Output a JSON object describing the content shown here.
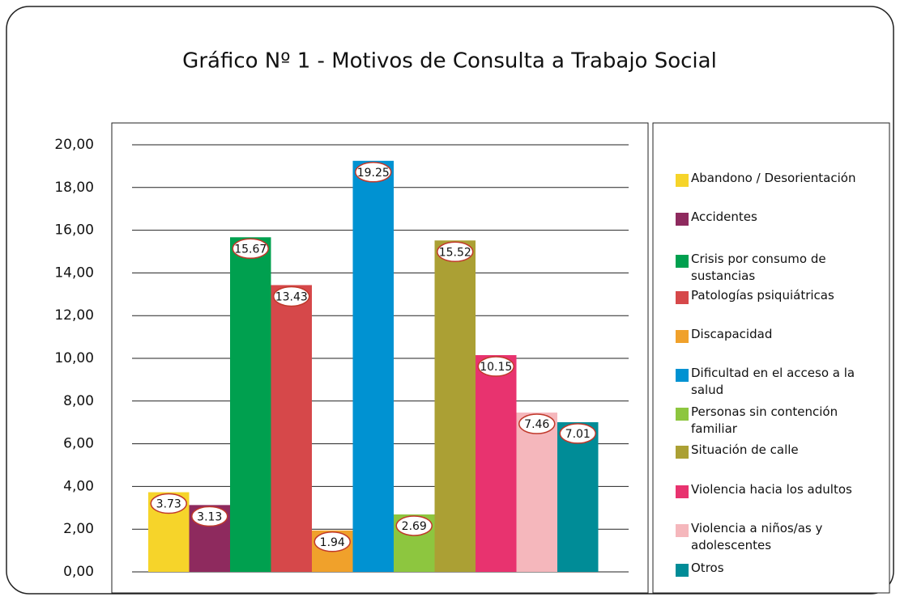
{
  "chart_data": {
    "type": "bar",
    "title": "Gráfico Nº 1 - Motivos de Consulta a Trabajo Social",
    "categories": [
      "Abandono / Desorientación",
      "Accidentes",
      "Crisis por consumo de sustancias",
      "Patologías psiquiátricas",
      "Discapacidad",
      "Dificultad en el acceso a la salud",
      "Personas sin contención familiar",
      "Situación de calle",
      "Violencia hacia los adultos",
      "Violencia a niños/as y adolescentes",
      "Otros"
    ],
    "values": [
      3.73,
      3.13,
      15.67,
      13.43,
      1.94,
      19.25,
      2.69,
      15.52,
      10.15,
      7.46,
      7.01
    ],
    "colors": [
      "#f6d42a",
      "#8e2a5e",
      "#00a04f",
      "#d6484a",
      "#f0a12b",
      "#0092d2",
      "#8dc63f",
      "#aba034",
      "#e8336f",
      "#f5b7bc",
      "#008c97"
    ],
    "ylim": [
      0,
      20
    ],
    "yticks": [
      {
        "value": 0,
        "label": "0,00"
      },
      {
        "value": 2,
        "label": "2,00"
      },
      {
        "value": 4,
        "label": "4,00"
      },
      {
        "value": 6,
        "label": "6,00"
      },
      {
        "value": 8,
        "label": "8,00"
      },
      {
        "value": 10,
        "label": "10,00"
      },
      {
        "value": 12,
        "label": "12,00"
      },
      {
        "value": 14,
        "label": "14,00"
      },
      {
        "value": 16,
        "label": "16,00"
      },
      {
        "value": 18,
        "label": "18,00"
      },
      {
        "value": 20,
        "label": "20,00"
      }
    ],
    "grid": true,
    "legend": "right"
  }
}
